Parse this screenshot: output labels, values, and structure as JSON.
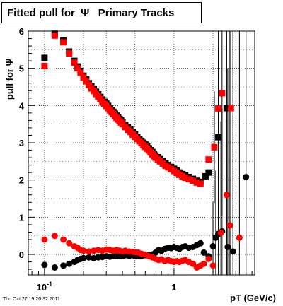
{
  "title": "Fitted pull for  Ψ   Primary Tracks",
  "timestamp": "Thu Oct 27 19:20:32 2011",
  "chart_data": {
    "type": "scatter",
    "title": "Fitted pull for  Ψ   Primary Tracks",
    "xlabel": "pT (GeV/c)",
    "ylabel": "pull for Ψ",
    "x_scale": "log",
    "xlim": [
      0.075,
      4.2
    ],
    "ylim": [
      -0.55,
      6.0
    ],
    "grid": true,
    "x_tick_labels": [
      {
        "value": 0.1,
        "base": "10",
        "exp": "-1"
      },
      {
        "value": 1,
        "base": "1",
        "exp": ""
      }
    ],
    "y_ticks": [
      0,
      1,
      2,
      3,
      4,
      5,
      6
    ],
    "series": [
      {
        "color": "#000000",
        "marker": "square",
        "points": [
          [
            0.1,
            5.28
          ],
          [
            0.12,
            5.93
          ],
          [
            0.14,
            5.75
          ],
          [
            0.155,
            5.45
          ],
          [
            0.17,
            5.2
          ],
          [
            0.18,
            5.05
          ],
          [
            0.19,
            4.93
          ],
          [
            0.2,
            4.8
          ],
          [
            0.21,
            4.7
          ],
          [
            0.22,
            4.6
          ],
          [
            0.23,
            4.52
          ],
          [
            0.24,
            4.45
          ],
          [
            0.25,
            4.37
          ],
          [
            0.26,
            4.3
          ],
          [
            0.27,
            4.23
          ],
          [
            0.28,
            4.16
          ],
          [
            0.29,
            4.1
          ],
          [
            0.3,
            4.05
          ],
          [
            0.31,
            3.99
          ],
          [
            0.32,
            3.93
          ],
          [
            0.33,
            3.88
          ],
          [
            0.34,
            3.83
          ],
          [
            0.35,
            3.78
          ],
          [
            0.36,
            3.73
          ],
          [
            0.37,
            3.68
          ],
          [
            0.38,
            3.64
          ],
          [
            0.39,
            3.6
          ],
          [
            0.4,
            3.56
          ],
          [
            0.42,
            3.48
          ],
          [
            0.44,
            3.41
          ],
          [
            0.46,
            3.35
          ],
          [
            0.48,
            3.28
          ],
          [
            0.5,
            3.22
          ],
          [
            0.52,
            3.16
          ],
          [
            0.54,
            3.1
          ],
          [
            0.56,
            3.05
          ],
          [
            0.58,
            3.0
          ],
          [
            0.6,
            2.95
          ],
          [
            0.62,
            2.9
          ],
          [
            0.64,
            2.85
          ],
          [
            0.66,
            2.8
          ],
          [
            0.68,
            2.75
          ],
          [
            0.7,
            2.7
          ],
          [
            0.72,
            2.66
          ],
          [
            0.75,
            2.61
          ],
          [
            0.78,
            2.56
          ],
          [
            0.82,
            2.5
          ],
          [
            0.86,
            2.44
          ],
          [
            0.9,
            2.4
          ],
          [
            0.95,
            2.35
          ],
          [
            1.0,
            2.3
          ],
          [
            1.05,
            2.25
          ],
          [
            1.1,
            2.2
          ],
          [
            1.16,
            2.16
          ],
          [
            1.22,
            2.12
          ],
          [
            1.3,
            2.08
          ],
          [
            1.4,
            2.03
          ],
          [
            1.5,
            1.98
          ],
          [
            1.6,
            1.95
          ],
          [
            1.75,
            2.1
          ],
          [
            1.85,
            2.2
          ],
          [
            2.2,
            3.15
          ],
          [
            2.55,
            3.93
          ]
        ]
      },
      {
        "color": "#ff0000",
        "marker": "square",
        "points": [
          [
            0.1,
            5.06
          ],
          [
            0.12,
            5.88
          ],
          [
            0.14,
            5.7
          ],
          [
            0.155,
            5.4
          ],
          [
            0.17,
            5.15
          ],
          [
            0.18,
            5.0
          ],
          [
            0.19,
            4.88
          ],
          [
            0.2,
            4.75
          ],
          [
            0.21,
            4.65
          ],
          [
            0.22,
            4.55
          ],
          [
            0.23,
            4.46
          ],
          [
            0.24,
            4.39
          ],
          [
            0.25,
            4.31
          ],
          [
            0.26,
            4.24
          ],
          [
            0.27,
            4.17
          ],
          [
            0.28,
            4.1
          ],
          [
            0.29,
            4.04
          ],
          [
            0.3,
            3.99
          ],
          [
            0.31,
            3.93
          ],
          [
            0.32,
            3.87
          ],
          [
            0.33,
            3.82
          ],
          [
            0.34,
            3.77
          ],
          [
            0.35,
            3.72
          ],
          [
            0.36,
            3.67
          ],
          [
            0.37,
            3.62
          ],
          [
            0.38,
            3.58
          ],
          [
            0.39,
            3.54
          ],
          [
            0.4,
            3.5
          ],
          [
            0.42,
            3.42
          ],
          [
            0.44,
            3.35
          ],
          [
            0.46,
            3.29
          ],
          [
            0.48,
            3.22
          ],
          [
            0.5,
            3.16
          ],
          [
            0.52,
            3.1
          ],
          [
            0.54,
            3.04
          ],
          [
            0.56,
            2.99
          ],
          [
            0.58,
            2.94
          ],
          [
            0.6,
            2.89
          ],
          [
            0.62,
            2.84
          ],
          [
            0.64,
            2.79
          ],
          [
            0.66,
            2.74
          ],
          [
            0.68,
            2.69
          ],
          [
            0.7,
            2.64
          ],
          [
            0.72,
            2.6
          ],
          [
            0.75,
            2.55
          ],
          [
            0.78,
            2.5
          ],
          [
            0.82,
            2.44
          ],
          [
            0.86,
            2.38
          ],
          [
            0.9,
            2.34
          ],
          [
            0.95,
            2.29
          ],
          [
            1.0,
            2.24
          ],
          [
            1.05,
            2.19
          ],
          [
            1.1,
            2.14
          ],
          [
            1.16,
            2.1
          ],
          [
            1.22,
            2.06
          ],
          [
            1.3,
            2.02
          ],
          [
            1.4,
            1.98
          ],
          [
            1.5,
            1.93
          ],
          [
            1.6,
            1.9
          ],
          [
            1.85,
            2.55
          ],
          [
            2.05,
            2.88
          ],
          [
            2.2,
            3.92
          ],
          [
            2.35,
            4.33
          ],
          [
            2.75,
            3.93
          ]
        ]
      },
      {
        "color": "#000000",
        "marker": "circle",
        "points": [
          [
            0.1,
            -0.28
          ],
          [
            0.12,
            -0.35
          ],
          [
            0.14,
            -0.3
          ],
          [
            0.155,
            -0.25
          ],
          [
            0.17,
            -0.2
          ],
          [
            0.18,
            -0.15
          ],
          [
            0.19,
            -0.12
          ],
          [
            0.2,
            -0.1
          ],
          [
            0.22,
            -0.08
          ],
          [
            0.24,
            -0.1
          ],
          [
            0.26,
            -0.08
          ],
          [
            0.28,
            -0.07
          ],
          [
            0.3,
            -0.05
          ],
          [
            0.32,
            -0.06
          ],
          [
            0.34,
            -0.04
          ],
          [
            0.36,
            -0.05
          ],
          [
            0.38,
            -0.03
          ],
          [
            0.4,
            -0.05
          ],
          [
            0.42,
            -0.02
          ],
          [
            0.45,
            -0.04
          ],
          [
            0.48,
            -0.02
          ],
          [
            0.5,
            -0.05
          ],
          [
            0.53,
            -0.03
          ],
          [
            0.56,
            -0.05
          ],
          [
            0.6,
            -0.02
          ],
          [
            0.64,
            -0.01
          ],
          [
            0.68,
            0.0
          ],
          [
            0.72,
            0.05
          ],
          [
            0.76,
            0.12
          ],
          [
            0.8,
            0.1
          ],
          [
            0.85,
            0.15
          ],
          [
            0.9,
            0.18
          ],
          [
            0.95,
            0.17
          ],
          [
            1.0,
            0.2
          ],
          [
            1.05,
            0.18
          ],
          [
            1.1,
            0.15
          ],
          [
            1.16,
            0.2
          ],
          [
            1.22,
            0.22
          ],
          [
            1.3,
            0.18
          ],
          [
            1.4,
            0.2
          ],
          [
            1.5,
            0.25
          ],
          [
            1.6,
            0.3
          ],
          [
            1.7,
            0.05
          ],
          [
            1.85,
            -0.05
          ],
          [
            2.0,
            0.22
          ],
          [
            2.1,
            0.45
          ],
          [
            2.2,
            0.55
          ],
          [
            2.35,
            0.62
          ],
          [
            2.6,
            0.2
          ],
          [
            2.85,
            0.08
          ],
          [
            3.6,
            2.08
          ]
        ]
      },
      {
        "color": "#ff0000",
        "marker": "circle",
        "points": [
          [
            0.1,
            0.4
          ],
          [
            0.12,
            0.5
          ],
          [
            0.14,
            0.4
          ],
          [
            0.155,
            0.3
          ],
          [
            0.17,
            0.22
          ],
          [
            0.18,
            0.18
          ],
          [
            0.19,
            0.12
          ],
          [
            0.2,
            0.1
          ],
          [
            0.22,
            0.08
          ],
          [
            0.24,
            0.1
          ],
          [
            0.26,
            0.12
          ],
          [
            0.28,
            0.1
          ],
          [
            0.3,
            0.13
          ],
          [
            0.32,
            0.12
          ],
          [
            0.34,
            0.1
          ],
          [
            0.36,
            0.12
          ],
          [
            0.38,
            0.1
          ],
          [
            0.4,
            0.08
          ],
          [
            0.42,
            0.1
          ],
          [
            0.45,
            0.08
          ],
          [
            0.48,
            0.07
          ],
          [
            0.5,
            0.06
          ],
          [
            0.53,
            0.05
          ],
          [
            0.56,
            0.02
          ],
          [
            0.6,
            0.0
          ],
          [
            0.64,
            -0.05
          ],
          [
            0.68,
            -0.08
          ],
          [
            0.72,
            -0.12
          ],
          [
            0.76,
            -0.15
          ],
          [
            0.8,
            -0.13
          ],
          [
            0.85,
            -0.18
          ],
          [
            0.9,
            -0.15
          ],
          [
            0.95,
            -0.18
          ],
          [
            1.0,
            -0.2
          ],
          [
            1.05,
            -0.18
          ],
          [
            1.1,
            -0.2
          ],
          [
            1.16,
            -0.17
          ],
          [
            1.22,
            -0.15
          ],
          [
            1.3,
            -0.2
          ],
          [
            1.4,
            -0.25
          ],
          [
            1.5,
            -0.35
          ],
          [
            1.6,
            -0.3
          ],
          [
            1.7,
            -0.25
          ],
          [
            1.85,
            -0.12
          ],
          [
            2.0,
            -0.3
          ],
          [
            2.3,
            0.58
          ],
          [
            2.55,
            1.6
          ],
          [
            2.7,
            0.78
          ],
          [
            3.2,
            0.45
          ]
        ]
      }
    ]
  }
}
